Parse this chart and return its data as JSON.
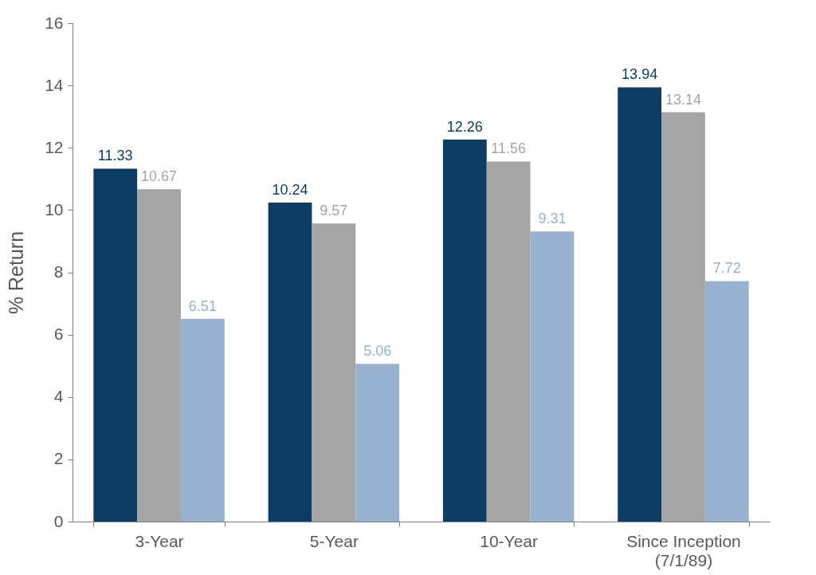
{
  "chart_data": {
    "type": "bar",
    "ylabel": "% Return",
    "categories": [
      "3-Year",
      "5-Year",
      "10-Year",
      "Since Inception (7/1/89)"
    ],
    "series": [
      {
        "color": "#0e3d63",
        "values": [
          11.33,
          10.24,
          12.26,
          13.94
        ]
      },
      {
        "color": "#a5a5a5",
        "values": [
          10.67,
          9.57,
          11.56,
          13.14
        ]
      },
      {
        "color": "#97b1cf",
        "values": [
          6.51,
          5.06,
          9.31,
          7.72
        ]
      }
    ],
    "ylim": [
      0,
      16
    ],
    "yticks": [
      0,
      2,
      4,
      6,
      8,
      10,
      12,
      14,
      16
    ],
    "grid": false,
    "legend": false,
    "data_labels": true
  }
}
